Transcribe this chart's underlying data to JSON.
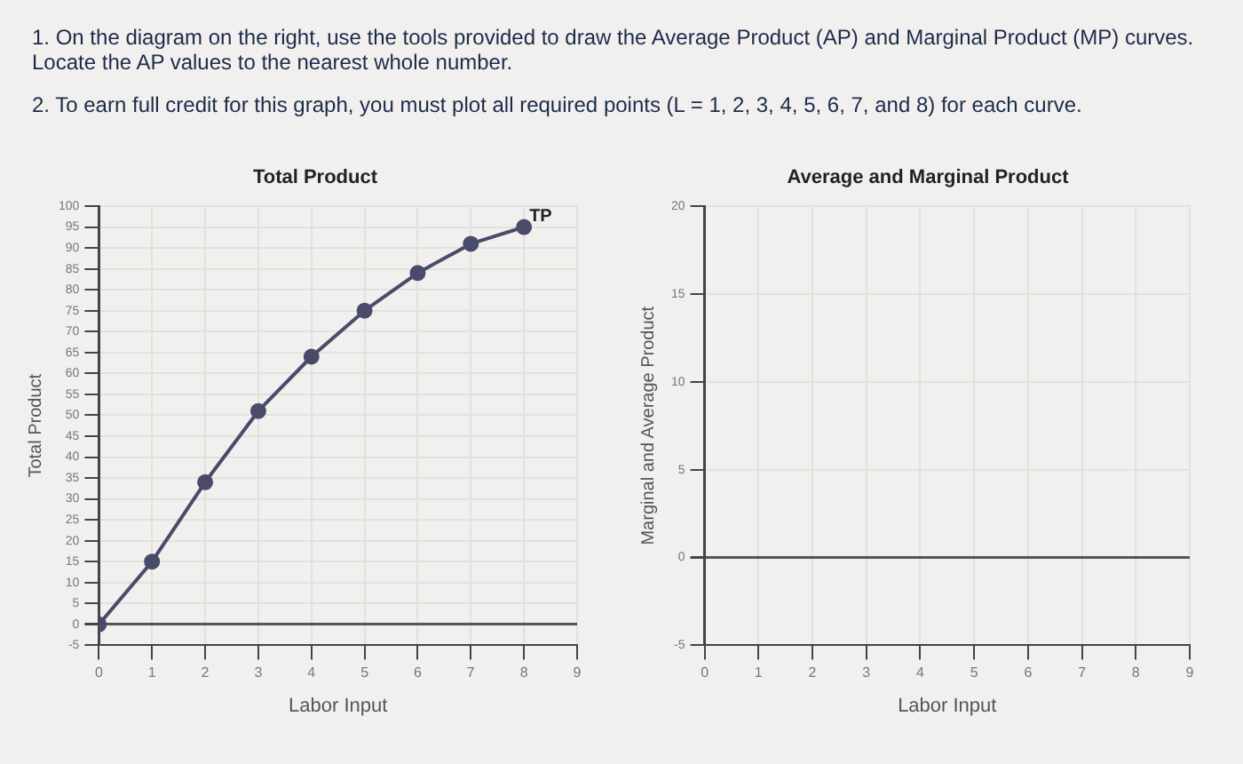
{
  "chart_data": [
    {
      "type": "line",
      "title": "Total Product",
      "xlabel": "Labor Input",
      "ylabel": "Total Product",
      "annotations": [
        "1. On the diagram on the right, use the tools provided to draw the Average Product (AP) and Marginal Product (MP) curves. Locate the AP values to the nearest whole number.",
        "2. To earn full credit for this graph, you must plot all required points (L = 1, 2, 3, 4, 5, 6, 7, and 8) for each curve."
      ],
      "x": [
        0,
        1,
        2,
        3,
        4,
        5,
        6,
        7,
        8
      ],
      "series": [
        {
          "name": "TP",
          "color": "#4a4a6a",
          "values": [
            0,
            15,
            34,
            51,
            64,
            75,
            84,
            91,
            95
          ]
        }
      ],
      "xlim": [
        0,
        9
      ],
      "xticks": [
        0,
        1,
        2,
        3,
        4,
        5,
        6,
        7,
        8,
        9
      ],
      "ylim": [
        -5,
        100
      ],
      "yticks": [
        -5,
        0,
        5,
        10,
        15,
        20,
        25,
        30,
        35,
        40,
        45,
        50,
        55,
        60,
        65,
        70,
        75,
        80,
        85,
        90,
        95,
        100
      ],
      "grid": true,
      "legend": false,
      "marker": "circle"
    },
    {
      "type": "line",
      "title": "Average and Marginal Product",
      "xlabel": "Labor Input",
      "ylabel": "Marginal and Average Product",
      "xlim": [
        0,
        9
      ],
      "xticks": [
        0,
        1,
        2,
        3,
        4,
        5,
        6,
        7,
        8,
        9
      ],
      "ylim": [
        -5,
        20
      ],
      "yticks": [
        -5,
        0,
        5,
        10,
        15,
        20
      ],
      "grid": true,
      "legend": false
    }
  ]
}
